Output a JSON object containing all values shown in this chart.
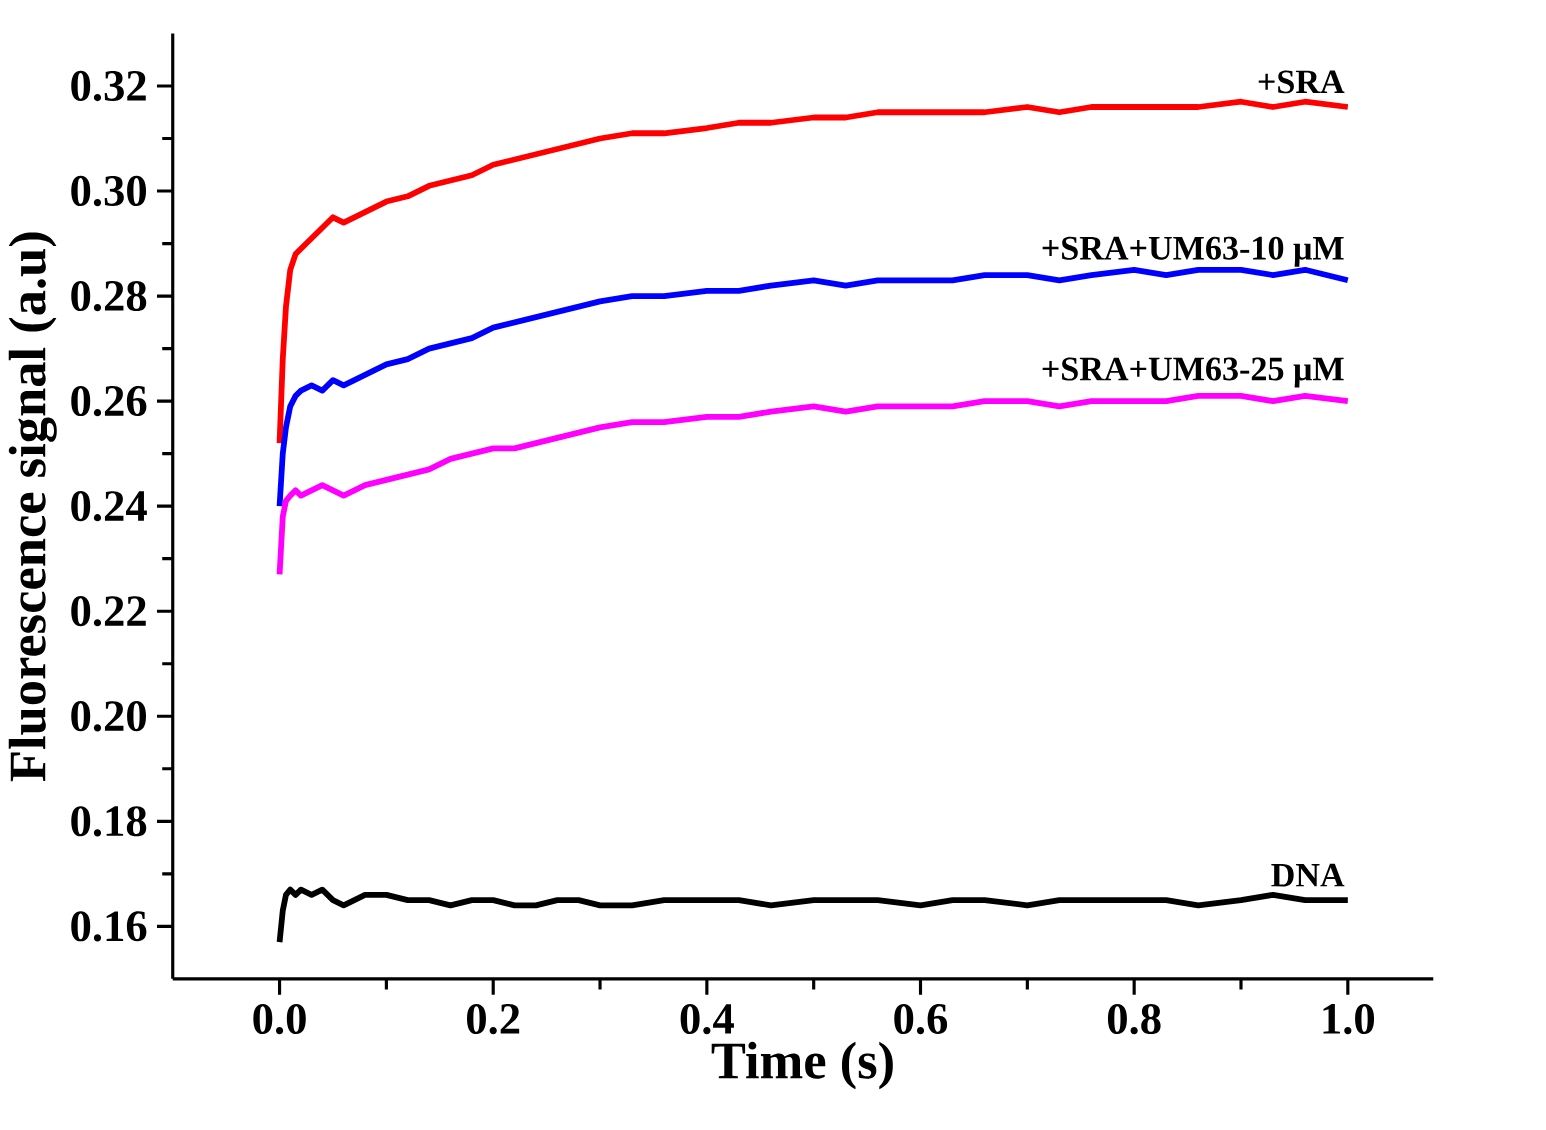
{
  "chart_data": {
    "type": "line",
    "xlabel": "Time (s)",
    "ylabel": "Fluorescence signal (a.u)",
    "x": [
      0,
      0.003,
      0.006,
      0.01,
      0.015,
      0.02,
      0.03,
      0.04,
      0.05,
      0.06,
      0.08,
      0.1,
      0.12,
      0.14,
      0.16,
      0.18,
      0.2,
      0.22,
      0.24,
      0.26,
      0.28,
      0.3,
      0.33,
      0.36,
      0.4,
      0.43,
      0.46,
      0.5,
      0.53,
      0.56,
      0.6,
      0.63,
      0.66,
      0.7,
      0.73,
      0.76,
      0.8,
      0.83,
      0.86,
      0.9,
      0.93,
      0.96,
      1.0
    ],
    "series": [
      {
        "name": "+SRA",
        "color": "#ff0000",
        "values": [
          0.252,
          0.268,
          0.278,
          0.285,
          0.288,
          0.289,
          0.291,
          0.293,
          0.295,
          0.294,
          0.296,
          0.298,
          0.299,
          0.301,
          0.302,
          0.303,
          0.305,
          0.306,
          0.307,
          0.308,
          0.309,
          0.31,
          0.311,
          0.311,
          0.312,
          0.313,
          0.313,
          0.314,
          0.314,
          0.315,
          0.315,
          0.315,
          0.315,
          0.316,
          0.315,
          0.316,
          0.316,
          0.316,
          0.316,
          0.317,
          0.316,
          0.317,
          0.316
        ]
      },
      {
        "name": "+SRA+UM63-10 μM",
        "color": "#0000ff",
        "values": [
          0.24,
          0.25,
          0.255,
          0.259,
          0.261,
          0.262,
          0.263,
          0.262,
          0.264,
          0.263,
          0.265,
          0.267,
          0.268,
          0.27,
          0.271,
          0.272,
          0.274,
          0.275,
          0.276,
          0.277,
          0.278,
          0.279,
          0.28,
          0.28,
          0.281,
          0.281,
          0.282,
          0.283,
          0.282,
          0.283,
          0.283,
          0.283,
          0.284,
          0.284,
          0.283,
          0.284,
          0.285,
          0.284,
          0.285,
          0.285,
          0.284,
          0.285,
          0.283
        ]
      },
      {
        "name": "+SRA+UM63-25 μM",
        "color": "#ff00ff",
        "values": [
          0.227,
          0.238,
          0.241,
          0.242,
          0.243,
          0.242,
          0.243,
          0.244,
          0.243,
          0.242,
          0.244,
          0.245,
          0.246,
          0.247,
          0.249,
          0.25,
          0.251,
          0.251,
          0.252,
          0.253,
          0.254,
          0.255,
          0.256,
          0.256,
          0.257,
          0.257,
          0.258,
          0.259,
          0.258,
          0.259,
          0.259,
          0.259,
          0.26,
          0.26,
          0.259,
          0.26,
          0.26,
          0.26,
          0.261,
          0.261,
          0.26,
          0.261,
          0.26
        ]
      },
      {
        "name": "DNA",
        "color": "#000000",
        "values": [
          0.157,
          0.163,
          0.166,
          0.167,
          0.166,
          0.167,
          0.166,
          0.167,
          0.165,
          0.164,
          0.166,
          0.166,
          0.165,
          0.165,
          0.164,
          0.165,
          0.165,
          0.164,
          0.164,
          0.165,
          0.165,
          0.164,
          0.164,
          0.165,
          0.165,
          0.165,
          0.164,
          0.165,
          0.165,
          0.165,
          0.164,
          0.165,
          0.165,
          0.164,
          0.165,
          0.165,
          0.165,
          0.165,
          0.164,
          0.165,
          0.166,
          0.165,
          0.165
        ]
      }
    ],
    "xlim": [
      -0.1,
      1.08
    ],
    "ylim": [
      0.15,
      0.33
    ],
    "xticks": [
      {
        "value": 0,
        "label": "0.0"
      },
      0.2,
      0.4,
      0.6,
      0.8,
      {
        "value": 1.0,
        "label": "1.0"
      }
    ],
    "yticks": [
      0.16,
      0.18,
      {
        "value": 0.2,
        "label": "0.20"
      },
      0.22,
      0.24,
      0.26,
      0.28,
      {
        "value": 0.3,
        "label": "0.30"
      },
      0.32
    ],
    "grid": false,
    "legend": false,
    "marker": "none",
    "line_style": "solid"
  }
}
